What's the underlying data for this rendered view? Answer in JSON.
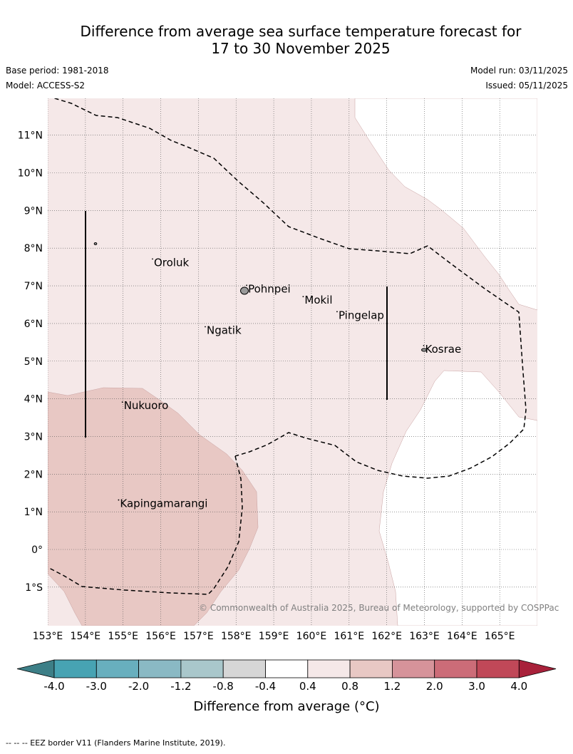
{
  "title": {
    "line1": "Difference from average sea surface temperature forecast for",
    "line2": "17 to 30 November 2025"
  },
  "meta": {
    "base_period": "Base period: 1981-2018",
    "model": "Model: ACCESS-S2",
    "model_run": "Model run: 03/11/2025",
    "issued": "Issued: 05/11/2025"
  },
  "map": {
    "lon_range": [
      153,
      166
    ],
    "lat_range": [
      -2,
      12
    ],
    "lon_ticks": [
      "153°E",
      "154°E",
      "155°E",
      "156°E",
      "157°E",
      "158°E",
      "159°E",
      "160°E",
      "161°E",
      "162°E",
      "163°E",
      "164°E",
      "165°E"
    ],
    "lat_ticks": [
      "11°N",
      "10°N",
      "9°N",
      "8°N",
      "7°N",
      "6°N",
      "5°N",
      "4°N",
      "3°N",
      "2°N",
      "1°N",
      "0°",
      "1°S"
    ],
    "places": [
      {
        "name": "Oroluk",
        "lon": 155.8,
        "lat": 7.6
      },
      {
        "name": "Pohnpei",
        "lon": 158.3,
        "lat": 6.9
      },
      {
        "name": "Mokil",
        "lon": 159.8,
        "lat": 6.6
      },
      {
        "name": "Pingelap",
        "lon": 160.7,
        "lat": 6.2
      },
      {
        "name": "Ngatik",
        "lon": 157.2,
        "lat": 5.8
      },
      {
        "name": "Kosrae",
        "lon": 163.0,
        "lat": 5.3
      },
      {
        "name": "Nukuoro",
        "lon": 155.0,
        "lat": 3.8
      },
      {
        "name": "Kapingamarangi",
        "lon": 154.9,
        "lat": 1.2
      }
    ],
    "colors": {
      "light_warm": "#f5e8e8",
      "warm": "#e8c8c4",
      "neutral": "#ffffff"
    },
    "copyright": "© Commonwealth of Australia 2025, Bureau of Meteorology, supported by COSPPac"
  },
  "colorbar": {
    "ticks": [
      "-4.0",
      "-3.0",
      "-2.0",
      "-1.2",
      "-0.8",
      "-0.4",
      "0.4",
      "0.8",
      "1.2",
      "2.0",
      "3.0",
      "4.0"
    ],
    "colors": [
      "#47a3b3",
      "#68afbe",
      "#8ab9c4",
      "#a9c7cb",
      "#d6d6d6",
      "#ffffff",
      "#f5e8e8",
      "#e8c8c4",
      "#d6939a",
      "#cc6c78",
      "#c04858"
    ],
    "under_color": "#3d7f87",
    "over_color": "#a8213a",
    "label": "Difference from average (°C)"
  },
  "footnote": "--  --  -- EEZ border V11 (Flanders Marine Institute, 2019)."
}
